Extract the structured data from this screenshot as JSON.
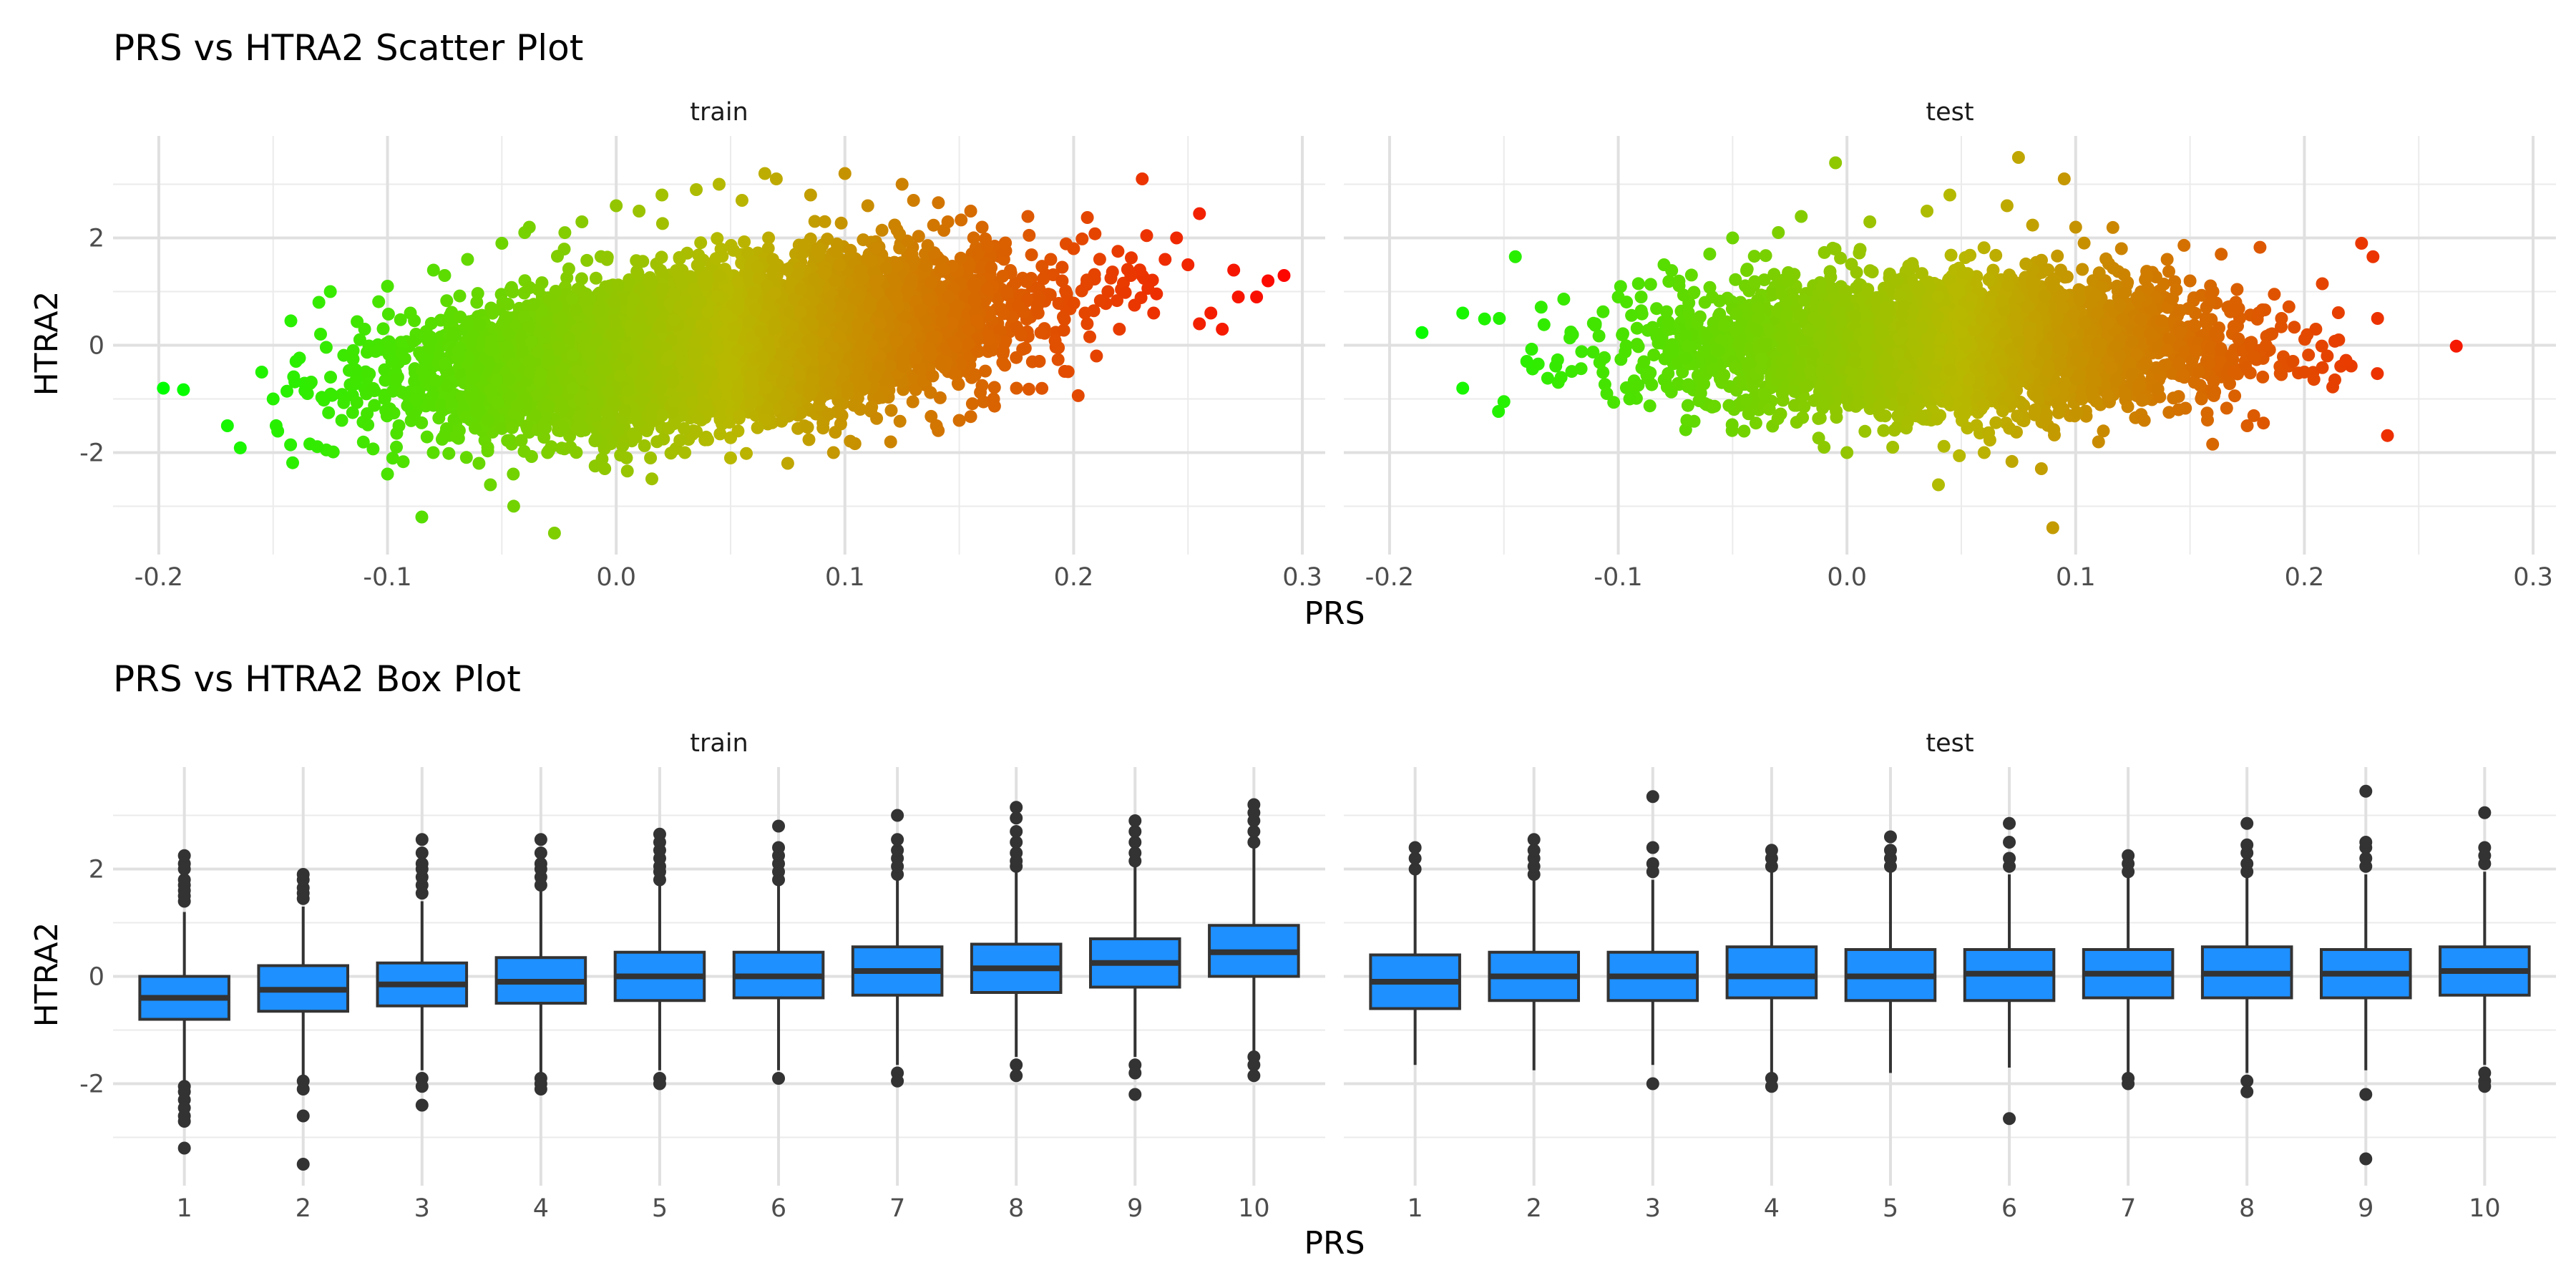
{
  "chart_data": [
    {
      "type": "scatter",
      "title": "PRS vs HTRA2 Scatter Plot",
      "xlabel": "PRS",
      "ylabel": "HTRA2",
      "xlim": [
        -0.22,
        0.31
      ],
      "ylim": [
        -3.9,
        3.9
      ],
      "x_ticks": [
        -0.2,
        -0.1,
        0.0,
        0.1,
        0.2,
        0.3
      ],
      "x_tick_labels": [
        "-0.2",
        "-0.1",
        "0.0",
        "0.1",
        "0.2",
        "0.3"
      ],
      "y_ticks": [
        -2,
        0,
        2
      ],
      "y_tick_labels": [
        "-2",
        "0",
        "2"
      ],
      "grid": true,
      "color_scale": {
        "low": "#00ff00",
        "mid": "#b8b800",
        "high": "#ff0000",
        "by": "PRS",
        "x_low": -0.2,
        "x_high": 0.3
      },
      "facets": [
        {
          "name": "train",
          "points": [
            [
              -0.198,
              -0.8
            ],
            [
              -0.17,
              -1.5
            ],
            [
              -0.155,
              -0.5
            ],
            [
              -0.15,
              -1.0
            ],
            [
              -0.148,
              -1.6
            ],
            [
              -0.14,
              -0.3
            ],
            [
              -0.135,
              -0.9
            ],
            [
              -0.13,
              0.8
            ],
            [
              -0.125,
              1.0
            ],
            [
              -0.12,
              -1.4
            ],
            [
              -0.115,
              -0.1
            ],
            [
              -0.11,
              0.3
            ],
            [
              -0.1,
              -2.4
            ],
            [
              -0.1,
              1.1
            ],
            [
              -0.095,
              -1.5
            ],
            [
              -0.09,
              0.6
            ],
            [
              -0.085,
              -3.2
            ],
            [
              -0.08,
              -2.0
            ],
            [
              -0.075,
              1.3
            ],
            [
              -0.07,
              -1.7
            ],
            [
              -0.065,
              1.6
            ],
            [
              -0.06,
              -2.2
            ],
            [
              -0.055,
              -2.6
            ],
            [
              -0.05,
              1.9
            ],
            [
              -0.045,
              -2.4
            ],
            [
              -0.04,
              2.1
            ],
            [
              -0.038,
              2.2
            ],
            [
              -0.03,
              -2.0
            ],
            [
              -0.027,
              -3.5
            ],
            [
              -0.02,
              -1.9
            ],
            [
              -0.015,
              2.3
            ],
            [
              -0.005,
              -2.3
            ],
            [
              0.0,
              2.6
            ],
            [
              0.01,
              2.5
            ],
            [
              0.015,
              -2.1
            ],
            [
              0.02,
              2.8
            ],
            [
              0.03,
              -2.0
            ],
            [
              0.035,
              2.9
            ],
            [
              0.045,
              3.0
            ],
            [
              0.05,
              -2.1
            ],
            [
              0.055,
              2.7
            ],
            [
              0.065,
              3.2
            ],
            [
              0.07,
              3.1
            ],
            [
              0.075,
              -2.2
            ],
            [
              0.085,
              2.8
            ],
            [
              0.095,
              -2.0
            ],
            [
              0.1,
              3.2
            ],
            [
              0.11,
              2.6
            ],
            [
              0.12,
              -1.8
            ],
            [
              0.125,
              3.0
            ],
            [
              0.13,
              2.7
            ],
            [
              0.14,
              -1.5
            ],
            [
              0.145,
              2.3
            ],
            [
              0.15,
              -1.4
            ],
            [
              0.155,
              2.5
            ],
            [
              0.16,
              2.2
            ],
            [
              0.165,
              -1.0
            ],
            [
              0.17,
              1.9
            ],
            [
              0.175,
              -0.8
            ],
            [
              0.18,
              2.4
            ],
            [
              0.185,
              -0.3
            ],
            [
              0.19,
              1.6
            ],
            [
              0.195,
              1.2
            ],
            [
              0.2,
              1.8
            ],
            [
              0.205,
              0.6
            ],
            [
              0.21,
              -0.2
            ],
            [
              0.215,
              1.0
            ],
            [
              0.22,
              0.3
            ],
            [
              0.225,
              1.3
            ],
            [
              0.23,
              3.1
            ],
            [
              0.235,
              0.6
            ],
            [
              0.24,
              1.6
            ],
            [
              0.245,
              2.0
            ],
            [
              0.25,
              1.5
            ],
            [
              0.255,
              0.4
            ],
            [
              0.26,
              0.6
            ],
            [
              0.265,
              0.3
            ],
            [
              0.27,
              1.4
            ],
            [
              0.272,
              0.9
            ],
            [
              0.28,
              0.9
            ],
            [
              0.285,
              1.2
            ],
            [
              0.292,
              1.3
            ]
          ]
        },
        {
          "name": "test",
          "points": [
            [
              -0.168,
              0.6
            ],
            [
              -0.168,
              -0.8
            ],
            [
              -0.152,
              0.5
            ],
            [
              -0.15,
              -1.05
            ],
            [
              -0.145,
              1.65
            ],
            [
              -0.14,
              -0.3
            ],
            [
              -0.135,
              -0.35
            ],
            [
              -0.125,
              -0.6
            ],
            [
              -0.12,
              0.2
            ],
            [
              -0.11,
              0.4
            ],
            [
              -0.105,
              -0.9
            ],
            [
              -0.1,
              0.9
            ],
            [
              -0.095,
              -1.0
            ],
            [
              -0.09,
              0.9
            ],
            [
              -0.08,
              1.5
            ],
            [
              -0.07,
              -1.4
            ],
            [
              -0.06,
              1.7
            ],
            [
              -0.05,
              2.0
            ],
            [
              -0.045,
              -1.6
            ],
            [
              -0.03,
              2.1
            ],
            [
              -0.02,
              2.4
            ],
            [
              -0.01,
              -1.9
            ],
            [
              -0.005,
              3.4
            ],
            [
              0.0,
              -2.0
            ],
            [
              0.01,
              2.3
            ],
            [
              0.02,
              -1.9
            ],
            [
              0.035,
              2.5
            ],
            [
              0.04,
              -2.6
            ],
            [
              0.045,
              2.8
            ],
            [
              0.06,
              -2.0
            ],
            [
              0.07,
              2.6
            ],
            [
              0.075,
              3.5
            ],
            [
              0.085,
              -2.3
            ],
            [
              0.09,
              -3.4
            ],
            [
              0.095,
              3.1
            ],
            [
              0.1,
              2.2
            ],
            [
              0.11,
              -1.8
            ],
            [
              0.12,
              1.8
            ],
            [
              0.13,
              -1.4
            ],
            [
              0.14,
              1.6
            ],
            [
              0.145,
              -1.2
            ],
            [
              0.15,
              1.2
            ],
            [
              0.155,
              -1.0
            ],
            [
              0.16,
              1.0
            ],
            [
              0.17,
              0.8
            ],
            [
              0.175,
              -1.5
            ],
            [
              0.18,
              0.6
            ],
            [
              0.185,
              0.2
            ],
            [
              0.19,
              0.5
            ],
            [
              0.195,
              -0.3
            ],
            [
              0.2,
              -0.5
            ],
            [
              0.205,
              0.3
            ],
            [
              0.21,
              -0.2
            ],
            [
              0.215,
              0.1
            ],
            [
              0.225,
              1.9
            ],
            [
              0.23,
              1.65
            ],
            [
              0.232,
              0.5
            ]
          ]
        }
      ]
    },
    {
      "type": "box",
      "title": "PRS vs HTRA2 Box Plot",
      "xlabel": "PRS",
      "ylabel": "HTRA2",
      "categories": [
        "1",
        "2",
        "3",
        "4",
        "5",
        "6",
        "7",
        "8",
        "9",
        "10"
      ],
      "ylim": [
        -3.9,
        3.9
      ],
      "y_ticks": [
        -2,
        0,
        2
      ],
      "y_tick_labels": [
        "-2",
        "0",
        "2"
      ],
      "grid": true,
      "box_fill": "#1e90ff",
      "facets": [
        {
          "name": "train",
          "boxes": [
            {
              "q1": -0.8,
              "median": -0.4,
              "q3": 0.0,
              "whisker_low": -1.95,
              "whisker_high": 1.2,
              "outliers": [
                1.4,
                1.5,
                1.6,
                1.7,
                1.8,
                2.0,
                2.1,
                2.25,
                -2.05,
                -2.15,
                -2.3,
                -2.45,
                -2.6,
                -2.7,
                -3.2
              ]
            },
            {
              "q1": -0.65,
              "median": -0.25,
              "q3": 0.2,
              "whisker_low": -1.85,
              "whisker_high": 1.3,
              "outliers": [
                1.45,
                1.55,
                1.65,
                1.8,
                1.9,
                -1.95,
                -2.1,
                -2.6,
                -3.5
              ]
            },
            {
              "q1": -0.55,
              "median": -0.15,
              "q3": 0.25,
              "whisker_low": -1.75,
              "whisker_high": 1.4,
              "outliers": [
                1.55,
                1.7,
                1.85,
                2.0,
                2.1,
                2.3,
                2.55,
                -1.9,
                -2.05,
                -2.4
              ]
            },
            {
              "q1": -0.5,
              "median": -0.1,
              "q3": 0.35,
              "whisker_low": -1.8,
              "whisker_high": 1.6,
              "outliers": [
                1.7,
                1.85,
                2.0,
                2.1,
                2.3,
                2.55,
                -1.9,
                -2.0,
                -2.1
              ]
            },
            {
              "q1": -0.45,
              "median": 0.0,
              "q3": 0.45,
              "whisker_low": -1.75,
              "whisker_high": 1.7,
              "outliers": [
                1.8,
                1.95,
                2.05,
                2.2,
                2.35,
                2.5,
                2.65,
                -1.9,
                -2.0
              ]
            },
            {
              "q1": -0.4,
              "median": 0.0,
              "q3": 0.45,
              "whisker_low": -1.75,
              "whisker_high": 1.7,
              "outliers": [
                1.8,
                1.95,
                2.1,
                2.25,
                2.4,
                2.8,
                -1.9
              ]
            },
            {
              "q1": -0.35,
              "median": 0.1,
              "q3": 0.55,
              "whisker_low": -1.65,
              "whisker_high": 1.8,
              "outliers": [
                1.9,
                2.05,
                2.2,
                2.35,
                2.55,
                3.0,
                -1.8,
                -1.95
              ]
            },
            {
              "q1": -0.3,
              "median": 0.15,
              "q3": 0.6,
              "whisker_low": -1.5,
              "whisker_high": 1.95,
              "outliers": [
                2.05,
                2.15,
                2.3,
                2.5,
                2.7,
                2.95,
                3.15,
                -1.65,
                -1.85
              ]
            },
            {
              "q1": -0.2,
              "median": 0.25,
              "q3": 0.7,
              "whisker_low": -1.5,
              "whisker_high": 2.05,
              "outliers": [
                2.15,
                2.3,
                2.5,
                2.7,
                2.9,
                -1.65,
                -1.8,
                -2.2
              ]
            },
            {
              "q1": 0.0,
              "median": 0.45,
              "q3": 0.95,
              "whisker_low": -1.4,
              "whisker_high": 2.4,
              "outliers": [
                2.5,
                2.7,
                2.9,
                3.05,
                3.2,
                -1.5,
                -1.65,
                -1.85
              ]
            }
          ]
        },
        {
          "name": "test",
          "boxes": [
            {
              "q1": -0.6,
              "median": -0.1,
              "q3": 0.4,
              "whisker_low": -1.65,
              "whisker_high": 1.9,
              "outliers": [
                2.0,
                2.2,
                2.4
              ]
            },
            {
              "q1": -0.45,
              "median": 0.0,
              "q3": 0.45,
              "whisker_low": -1.75,
              "whisker_high": 1.8,
              "outliers": [
                1.9,
                2.05,
                2.2,
                2.35,
                2.55
              ]
            },
            {
              "q1": -0.45,
              "median": 0.0,
              "q3": 0.45,
              "whisker_low": -1.65,
              "whisker_high": 1.8,
              "outliers": [
                1.95,
                2.1,
                2.4,
                3.35,
                -2.0
              ]
            },
            {
              "q1": -0.4,
              "median": 0.0,
              "q3": 0.55,
              "whisker_low": -1.8,
              "whisker_high": 1.95,
              "outliers": [
                2.05,
                2.2,
                2.35,
                -1.9,
                -2.05
              ]
            },
            {
              "q1": -0.45,
              "median": 0.0,
              "q3": 0.5,
              "whisker_low": -1.8,
              "whisker_high": 1.95,
              "outliers": [
                2.05,
                2.2,
                2.35,
                2.6
              ]
            },
            {
              "q1": -0.45,
              "median": 0.05,
              "q3": 0.5,
              "whisker_low": -1.7,
              "whisker_high": 1.9,
              "outliers": [
                2.05,
                2.2,
                2.5,
                2.85,
                -2.65
              ]
            },
            {
              "q1": -0.4,
              "median": 0.05,
              "q3": 0.5,
              "whisker_low": -1.8,
              "whisker_high": 1.85,
              "outliers": [
                1.95,
                2.1,
                2.25,
                -1.9,
                -2.0
              ]
            },
            {
              "q1": -0.4,
              "median": 0.05,
              "q3": 0.55,
              "whisker_low": -1.8,
              "whisker_high": 1.85,
              "outliers": [
                1.95,
                2.1,
                2.3,
                2.45,
                2.85,
                -1.95,
                -2.15
              ]
            },
            {
              "q1": -0.4,
              "median": 0.05,
              "q3": 0.5,
              "whisker_low": -1.75,
              "whisker_high": 1.9,
              "outliers": [
                2.05,
                2.2,
                2.4,
                2.5,
                3.45,
                -2.2,
                -3.4
              ]
            },
            {
              "q1": -0.35,
              "median": 0.1,
              "q3": 0.55,
              "whisker_low": -1.65,
              "whisker_high": 1.95,
              "outliers": [
                2.1,
                2.25,
                2.4,
                3.05,
                -1.8,
                -1.95,
                -2.05
              ]
            }
          ]
        }
      ]
    }
  ]
}
